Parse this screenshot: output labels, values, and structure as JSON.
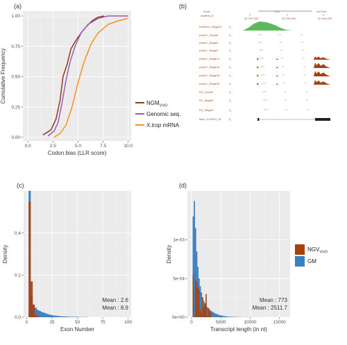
{
  "panels": {
    "a": "(a)",
    "b": "(b)",
    "c": "(c)",
    "d": "(d)"
  },
  "colors": {
    "ngm": "#8b3a1a",
    "genomic": "#9b59b6",
    "xtrop": "#ff8c1a",
    "gm": "#3a7fc1",
    "ngm_hist": "#a8410f",
    "green_track": "#3fae3f"
  },
  "chart_data": [
    {
      "id": "a",
      "type": "line",
      "title": "",
      "xlabel": "Codon bias (LLR score)",
      "ylabel": "Cumulative Frequency",
      "xlim": [
        -0.5,
        10.3
      ],
      "ylim": [
        -0.03,
        1.04
      ],
      "xticks": [
        "0.0",
        "2.5",
        "5.0",
        "7.5",
        "10.0"
      ],
      "yticks": [
        "0.00",
        "0.25",
        "0.50",
        "0.75",
        "1.00"
      ],
      "legend_position": "right",
      "series": [
        {
          "name": "NGM",
          "name_sub": "VVO",
          "color": "#8b3a1a",
          "points": [
            [
              1.5,
              0.02
            ],
            [
              2.3,
              0.06
            ],
            [
              2.8,
              0.15
            ],
            [
              3.2,
              0.3
            ],
            [
              3.5,
              0.5
            ],
            [
              3.9,
              0.6
            ],
            [
              4.3,
              0.73
            ],
            [
              4.8,
              0.8
            ],
            [
              5.3,
              0.86
            ],
            [
              5.8,
              0.91
            ],
            [
              6.4,
              0.96
            ],
            [
              7.0,
              0.99
            ],
            [
              7.6,
              1.0
            ]
          ]
        },
        {
          "name": "Genomic seq.",
          "color": "#9b59b6",
          "points": [
            [
              2.0,
              0.01
            ],
            [
              2.6,
              0.05
            ],
            [
              3.0,
              0.12
            ],
            [
              3.4,
              0.28
            ],
            [
              3.8,
              0.47
            ],
            [
              4.2,
              0.62
            ],
            [
              4.7,
              0.75
            ],
            [
              5.3,
              0.86
            ],
            [
              6.0,
              0.93
            ],
            [
              7.0,
              0.98
            ],
            [
              8.0,
              1.0
            ],
            [
              10.0,
              1.0
            ]
          ]
        },
        {
          "name": "X.trop mRNA",
          "name_italic": "X.trop",
          "name_rest": " mRNA",
          "color": "#ff8c1a",
          "points": [
            [
              2.6,
              0.0
            ],
            [
              3.2,
              0.03
            ],
            [
              3.8,
              0.1
            ],
            [
              4.4,
              0.25
            ],
            [
              5.0,
              0.45
            ],
            [
              5.6,
              0.62
            ],
            [
              6.3,
              0.77
            ],
            [
              7.0,
              0.86
            ],
            [
              8.0,
              0.93
            ],
            [
              9.0,
              0.96
            ],
            [
              10.0,
              0.98
            ]
          ]
        }
      ]
    },
    {
      "id": "b",
      "type": "table",
      "header": [
        "Scale",
        "scaffold_6:"
      ],
      "scale_label": "1 kb",
      "coords": [
        "32,757,000",
        "32,759,000",
        "32,760,000"
      ],
      "extra": "xenTro9",
      "tracks": [
        {
          "label": "NGMvvo_Stage10",
          "green": true
        },
        {
          "label": "polyA+_Oocyte"
        },
        {
          "label": "polyA+_Stage6"
        },
        {
          "label": "polyA+_Stage9"
        },
        {
          "label": "polyA+_Stage12"
        },
        {
          "label": "polyA+_Stage16"
        },
        {
          "label": "polyA+_Stage18"
        },
        {
          "label": "polyA+_Stage30"
        },
        {
          "label": "R2_Oocyte"
        },
        {
          "label": "R2_Stage6"
        },
        {
          "label": "R2_Stage9"
        },
        {
          "label": "Mus_3.1044.0_M",
          "gene": true
        }
      ]
    },
    {
      "id": "c",
      "type": "bar",
      "xlabel": "Exon Number",
      "ylabel": "Density",
      "xlim": [
        -3,
        103
      ],
      "ylim": [
        0,
        0.6
      ],
      "xticks": [
        "0",
        "25",
        "50",
        "75",
        "100"
      ],
      "yticks": [
        "0.0",
        "0.2",
        "0.4"
      ],
      "bin_width": 2,
      "gm": [
        0.0,
        0.6,
        0.1,
        0.06,
        0.045,
        0.035,
        0.03,
        0.025,
        0.022,
        0.018,
        0.015,
        0.012,
        0.01,
        0.008,
        0.007,
        0.006,
        0.005,
        0.004,
        0.004,
        0.003,
        0.003,
        0.002,
        0.002,
        0.002,
        0.0015,
        0.0015,
        0.001,
        0.001,
        0.001,
        0.001
      ],
      "ngm": [
        0.0,
        0.55,
        0.17,
        0.06,
        0.01,
        0.005
      ],
      "annotations": [
        {
          "text": "Mean : 2.6",
          "color": "#a8410f"
        },
        {
          "text": "Mean : 8.9",
          "color": "#3a7fc1"
        }
      ]
    },
    {
      "id": "d",
      "type": "bar",
      "xlabel": "Transcript length (in nt)",
      "ylabel": "Density",
      "xlim": [
        -700,
        16800
      ],
      "ylim": [
        0,
        0.00163
      ],
      "xticks": [
        "0",
        "5000",
        "10000",
        "15000"
      ],
      "yticks": [
        "0e+00",
        "5e-04",
        "1e-03"
      ],
      "bin_width": 200,
      "gm": [
        0.0,
        0.0013,
        0.0015,
        0.00115,
        0.00085,
        0.00065,
        0.0005,
        0.0004,
        0.00032,
        0.00026,
        0.00021,
        0.00018,
        0.00015,
        0.00013,
        0.00011,
        0.0001,
        8.5e-05,
        7.5e-05,
        6.5e-05,
        5.5e-05,
        4.8e-05,
        4.2e-05,
        3.6e-05,
        3e-05,
        2.6e-05,
        2.2e-05,
        1.9e-05,
        1.6e-05,
        1.4e-05,
        1.2e-05,
        1e-05,
        9e-06,
        8e-06,
        7e-06,
        6e-06,
        5e-06,
        4e-06,
        4e-06,
        3e-06,
        3e-06,
        2e-06,
        2e-06,
        2e-06,
        1e-06,
        1e-06,
        1e-06,
        1e-06,
        1e-06,
        1e-06,
        1e-06,
        1e-06,
        1e-06,
        8e-07,
        8e-07,
        8e-07,
        6e-07,
        6e-07,
        5e-07,
        4e-07,
        3e-07
      ],
      "ngm": [
        0.0,
        0.00055,
        0.0,
        0.00048,
        0.00045,
        0.00038,
        0.00035,
        0.0001,
        5e-05,
        0.00025,
        0.00013,
        0.00018,
        0.0003,
        2e-05,
        0.00012,
        8e-05,
        6e-05
      ],
      "annotations": [
        {
          "text": "Mean : 773",
          "color": "#a8410f"
        },
        {
          "text": "Mean : 2511.7",
          "color": "#3a7fc1"
        }
      ],
      "legend": [
        {
          "name": "NGV",
          "name_sub": "VVO",
          "color": "#a8410f"
        },
        {
          "name": "GM",
          "color": "#3a7fc1"
        }
      ]
    }
  ]
}
